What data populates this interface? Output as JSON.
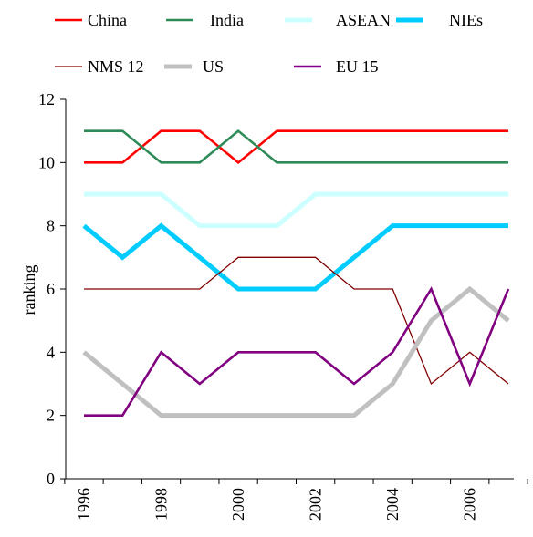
{
  "chart_data": {
    "type": "line",
    "title": "",
    "xlabel": "",
    "ylabel": "ranking",
    "x": [
      1996,
      1997,
      1998,
      1999,
      2000,
      2001,
      2002,
      2003,
      2004,
      2005,
      2006,
      2007
    ],
    "xticks": [
      "1996",
      "1998",
      "2000",
      "2002",
      "2004",
      "2006"
    ],
    "ylim": [
      0,
      12
    ],
    "yticks": [
      "0",
      "2",
      "4",
      "6",
      "8",
      "10",
      "12"
    ],
    "grid": false,
    "legend_position": "top",
    "series": [
      {
        "name": "China",
        "color": "#ff0000",
        "weight": "medium",
        "values": [
          10,
          10,
          11,
          11,
          10,
          11,
          11,
          11,
          11,
          11,
          11,
          11
        ]
      },
      {
        "name": "India",
        "color": "#2e8b57",
        "weight": "medium",
        "values": [
          11,
          11,
          10,
          10,
          11,
          10,
          10,
          10,
          10,
          10,
          10,
          10
        ]
      },
      {
        "name": "ASEAN",
        "color": "#ccffff",
        "weight": "thick",
        "values": [
          9,
          9,
          9,
          8,
          8,
          8,
          9,
          9,
          9,
          9,
          9,
          9
        ]
      },
      {
        "name": "NIEs",
        "color": "#00ccff",
        "weight": "thick",
        "values": [
          8,
          7,
          8,
          7,
          6,
          6,
          6,
          7,
          8,
          8,
          8,
          8
        ]
      },
      {
        "name": "NMS 12",
        "color": "#800000",
        "weight": "thin",
        "values": [
          6,
          6,
          6,
          6,
          7,
          7,
          7,
          6,
          6,
          3,
          4,
          3
        ]
      },
      {
        "name": "US",
        "color": "#c0c0c0",
        "weight": "thick",
        "values": [
          4,
          3,
          2,
          2,
          2,
          2,
          2,
          2,
          3,
          5,
          6,
          5
        ]
      },
      {
        "name": "EU 15",
        "color": "#800080",
        "weight": "medium",
        "values": [
          2,
          2,
          4,
          3,
          4,
          4,
          4,
          3,
          4,
          6,
          3,
          6
        ]
      }
    ]
  }
}
